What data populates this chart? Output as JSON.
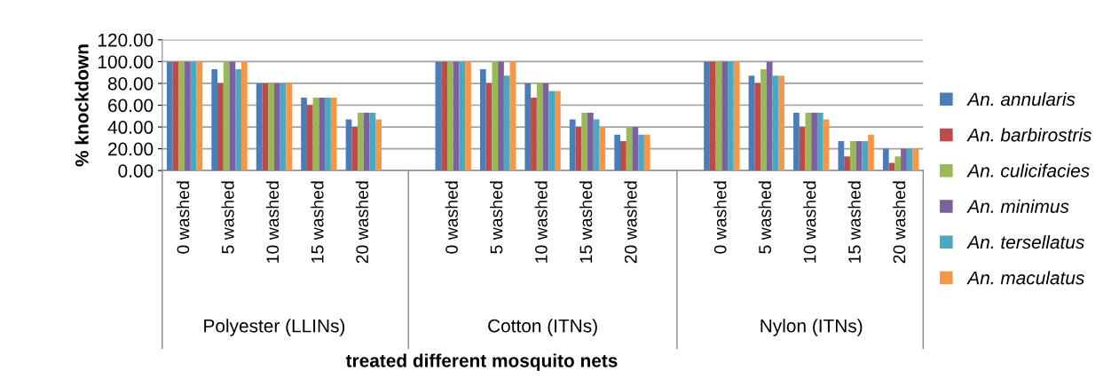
{
  "chart_data": {
    "type": "bar",
    "categories": [
      "0 washed",
      "5 washed",
      "10 washed",
      "15 washed",
      "20 washed",
      null,
      "0 washed",
      "5 washed",
      "10 washed",
      "15 washed",
      "20 washed",
      null,
      "0 washed",
      "5 washed",
      "10 washed",
      "15 washed",
      "20 washed"
    ],
    "series": [
      {
        "name": "An. annularis",
        "color": "#4a7ebb",
        "values": [
          100,
          93,
          80,
          67,
          47,
          null,
          100,
          93,
          80,
          47,
          33,
          null,
          100,
          87,
          53,
          27,
          20
        ]
      },
      {
        "name": "An. barbirostris",
        "color": "#be4b48",
        "values": [
          100,
          80,
          80,
          60,
          40,
          null,
          100,
          80,
          67,
          40,
          27,
          null,
          100,
          80,
          40,
          13,
          7
        ]
      },
      {
        "name": "An. culicifacies",
        "color": "#98b954",
        "values": [
          100,
          100,
          80,
          67,
          53,
          null,
          100,
          100,
          80,
          53,
          40,
          null,
          100,
          93,
          53,
          27,
          13
        ]
      },
      {
        "name": "An. minimus",
        "color": "#7d60a0",
        "values": [
          100,
          100,
          80,
          67,
          53,
          null,
          100,
          100,
          80,
          53,
          40,
          null,
          100,
          100,
          53,
          27,
          20
        ]
      },
      {
        "name": "An. tersellatus",
        "color": "#46aac5",
        "values": [
          100,
          93,
          80,
          67,
          53,
          null,
          100,
          87,
          73,
          47,
          33,
          null,
          100,
          87,
          53,
          27,
          20
        ]
      },
      {
        "name": "An. maculatus",
        "color": "#f79646",
        "values": [
          100,
          100,
          80,
          67,
          47,
          null,
          100,
          100,
          73,
          40,
          33,
          null,
          100,
          87,
          47,
          33,
          20
        ]
      }
    ],
    "ylabel": "% knockdown",
    "xlabel": "treated different mosquito nets",
    "annotations": [
      "Polyester (LLINs)",
      "Cotton (ITNs)",
      "Nylon (ITNs)"
    ],
    "ylim": [
      0,
      120
    ],
    "yticks": [
      {
        "value": 0,
        "label": "0.00"
      },
      {
        "value": 20,
        "label": "20.00"
      },
      {
        "value": 40,
        "label": "40.00"
      },
      {
        "value": 60,
        "label": "60.00"
      },
      {
        "value": 80,
        "label": "80.00"
      },
      {
        "value": 100,
        "label": "100.00"
      },
      {
        "value": 120,
        "label": "120.00"
      }
    ],
    "grid": "y",
    "legend": "right"
  }
}
